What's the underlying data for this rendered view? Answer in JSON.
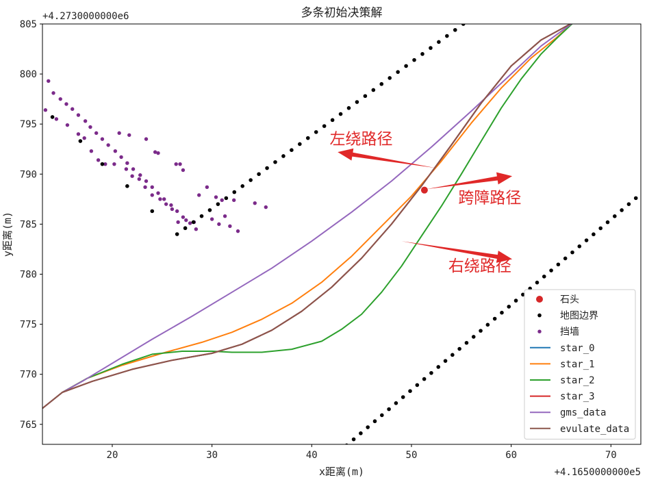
{
  "chart_data": {
    "type": "line",
    "title": "多条初始决策解",
    "xlabel": "x距离(m)",
    "ylabel": "y距离(m)",
    "x_offset_label": "+4.1650000000e5",
    "y_offset_label": "+4.2730000000e6",
    "xlim": [
      13,
      73
    ],
    "ylim": [
      763,
      805
    ],
    "x_ticks": [
      20,
      30,
      40,
      50,
      60,
      70
    ],
    "y_ticks": [
      765,
      770,
      775,
      780,
      785,
      790,
      795,
      800,
      805
    ],
    "grid": false,
    "legend_position": "lower right",
    "stone": {
      "name": "石头",
      "color": "#d62728",
      "point": [
        51.3,
        788.4
      ]
    },
    "boundary": {
      "name": "地图边界",
      "color": "#000000",
      "segments": [
        {
          "from": [
            26.5,
            784.0
          ],
          "to": [
            55.2,
            805.0
          ],
          "count": 36
        },
        {
          "from": [
            43.5,
            762.9
          ],
          "to": [
            72.5,
            787.6
          ],
          "count": 42
        }
      ],
      "extra_points": [
        [
          14.0,
          795.7
        ],
        [
          16.8,
          793.3
        ],
        [
          19.0,
          791.0
        ],
        [
          21.5,
          788.8
        ],
        [
          24.0,
          786.3
        ]
      ]
    },
    "wall": {
      "name": "挡墙",
      "color": "#7b2b8a",
      "points": [
        [
          13.6,
          799.3
        ],
        [
          14.1,
          798.1
        ],
        [
          14.8,
          797.5
        ],
        [
          15.4,
          797.0
        ],
        [
          16.0,
          796.5
        ],
        [
          16.6,
          795.9
        ],
        [
          17.3,
          795.3
        ],
        [
          17.8,
          794.7
        ],
        [
          18.4,
          794.1
        ],
        [
          19.0,
          793.5
        ],
        [
          19.6,
          792.9
        ],
        [
          20.3,
          792.3
        ],
        [
          20.9,
          791.7
        ],
        [
          21.5,
          791.1
        ],
        [
          22.1,
          790.5
        ],
        [
          22.8,
          789.9
        ],
        [
          23.4,
          789.3
        ],
        [
          24.0,
          788.7
        ],
        [
          24.6,
          788.1
        ],
        [
          25.2,
          787.5
        ],
        [
          25.9,
          786.9
        ],
        [
          26.5,
          786.3
        ],
        [
          27.1,
          785.7
        ],
        [
          27.8,
          785.1
        ],
        [
          28.4,
          784.5
        ],
        [
          13.3,
          796.4
        ],
        [
          14.4,
          795.5
        ],
        [
          15.5,
          794.9
        ],
        [
          16.6,
          794.0
        ],
        [
          17.2,
          793.6
        ],
        [
          17.9,
          792.3
        ],
        [
          18.6,
          791.4
        ],
        [
          19.3,
          791.0
        ],
        [
          20.2,
          791.0
        ],
        [
          21.4,
          790.5
        ],
        [
          22.0,
          789.8
        ],
        [
          22.7,
          789.5
        ],
        [
          23.3,
          788.7
        ],
        [
          24.0,
          787.9
        ],
        [
          24.8,
          787.5
        ],
        [
          25.4,
          787.0
        ],
        [
          26.0,
          786.5
        ],
        [
          26.6,
          785.2
        ],
        [
          27.4,
          785.4
        ],
        [
          28.2,
          785.2
        ],
        [
          30.0,
          785.5
        ],
        [
          31.3,
          785.8
        ],
        [
          32.6,
          784.3
        ],
        [
          21.7,
          793.9
        ],
        [
          23.4,
          793.5
        ],
        [
          24.6,
          792.1
        ],
        [
          26.4,
          791.0
        ],
        [
          27.1,
          790.4
        ],
        [
          29.5,
          788.7
        ],
        [
          30.4,
          787.7
        ],
        [
          31.0,
          787.4
        ],
        [
          32.2,
          787.4
        ],
        [
          34.3,
          787.1
        ],
        [
          35.4,
          786.7
        ],
        [
          20.7,
          794.1
        ],
        [
          24.3,
          792.2
        ],
        [
          26.8,
          791.0
        ],
        [
          28.7,
          787.9
        ],
        [
          30.7,
          785.0
        ],
        [
          31.8,
          784.8
        ]
      ]
    },
    "series": [
      {
        "name": "star_0",
        "color": "#1f77b4",
        "points": [
          [
            13,
            766.6
          ],
          [
            15,
            768.2
          ],
          [
            18,
            769.3
          ],
          [
            22,
            770.5
          ],
          [
            26,
            771.4
          ],
          [
            30,
            772.1
          ],
          [
            33,
            773.0
          ],
          [
            36,
            774.4
          ],
          [
            39,
            776.3
          ],
          [
            42,
            778.7
          ],
          [
            45,
            781.6
          ],
          [
            48,
            785.0
          ],
          [
            51,
            788.8
          ],
          [
            54,
            792.9
          ],
          [
            57,
            797.1
          ],
          [
            60,
            800.8
          ],
          [
            63,
            803.4
          ],
          [
            66.3,
            805.2
          ]
        ]
      },
      {
        "name": "star_1",
        "color": "#ff7f0e",
        "points": [
          [
            13,
            766.6
          ],
          [
            15,
            768.2
          ],
          [
            17.5,
            769.6
          ],
          [
            21,
            770.9
          ],
          [
            25,
            772.1
          ],
          [
            29,
            773.2
          ],
          [
            32,
            774.2
          ],
          [
            35,
            775.5
          ],
          [
            38,
            777.1
          ],
          [
            41,
            779.2
          ],
          [
            44,
            781.8
          ],
          [
            47,
            784.8
          ],
          [
            50,
            787.8
          ],
          [
            53,
            791.3
          ],
          [
            56,
            795.1
          ],
          [
            59,
            798.6
          ],
          [
            62,
            801.6
          ],
          [
            64.5,
            803.6
          ],
          [
            66.3,
            805.2
          ]
        ]
      },
      {
        "name": "star_2",
        "color": "#2ca02c",
        "points": [
          [
            13,
            766.6
          ],
          [
            15,
            768.2
          ],
          [
            17.5,
            769.6
          ],
          [
            21,
            771.0
          ],
          [
            24,
            772.0
          ],
          [
            27,
            772.3
          ],
          [
            30,
            772.3
          ],
          [
            32,
            772.2
          ],
          [
            35,
            772.2
          ],
          [
            38,
            772.5
          ],
          [
            41,
            773.3
          ],
          [
            43,
            774.5
          ],
          [
            45,
            776.0
          ],
          [
            47,
            778.2
          ],
          [
            49,
            780.8
          ],
          [
            51,
            783.8
          ],
          [
            53,
            786.8
          ],
          [
            55,
            790.0
          ],
          [
            57,
            793.3
          ],
          [
            59,
            796.6
          ],
          [
            61,
            799.5
          ],
          [
            63,
            802.0
          ],
          [
            64.5,
            803.5
          ],
          [
            66.3,
            805.2
          ]
        ]
      },
      {
        "name": "star_3",
        "color": "#d62728",
        "points": [
          [
            13,
            766.6
          ],
          [
            15,
            768.2
          ],
          [
            18,
            769.3
          ],
          [
            22,
            770.5
          ],
          [
            26,
            771.4
          ],
          [
            30,
            772.1
          ],
          [
            33,
            773.0
          ],
          [
            36,
            774.4
          ],
          [
            39,
            776.3
          ],
          [
            42,
            778.7
          ],
          [
            45,
            781.6
          ],
          [
            48,
            785.0
          ],
          [
            51,
            788.8
          ],
          [
            54,
            792.9
          ],
          [
            57,
            797.1
          ],
          [
            60,
            800.8
          ],
          [
            63,
            803.4
          ],
          [
            66.3,
            805.2
          ]
        ]
      },
      {
        "name": "gms_data",
        "color": "#9467bd",
        "points": [
          [
            13,
            766.6
          ],
          [
            15,
            768.2
          ],
          [
            17,
            769.3
          ],
          [
            20,
            771.1
          ],
          [
            24,
            773.5
          ],
          [
            28,
            775.8
          ],
          [
            32,
            778.2
          ],
          [
            36,
            780.6
          ],
          [
            40,
            783.3
          ],
          [
            44,
            786.2
          ],
          [
            48,
            789.3
          ],
          [
            52,
            792.7
          ],
          [
            56,
            796.3
          ],
          [
            60,
            800.0
          ],
          [
            63,
            802.8
          ],
          [
            66.3,
            805.2
          ]
        ]
      },
      {
        "name": "evulate_data",
        "color": "#8c564b",
        "points": [
          [
            13,
            766.6
          ],
          [
            15,
            768.2
          ],
          [
            18,
            769.3
          ],
          [
            22,
            770.5
          ],
          [
            26,
            771.4
          ],
          [
            30,
            772.1
          ],
          [
            33,
            773.0
          ],
          [
            36,
            774.4
          ],
          [
            39,
            776.3
          ],
          [
            42,
            778.7
          ],
          [
            45,
            781.6
          ],
          [
            48,
            785.0
          ],
          [
            51,
            788.8
          ],
          [
            54,
            792.9
          ],
          [
            57,
            797.1
          ],
          [
            60,
            800.8
          ],
          [
            63,
            803.4
          ],
          [
            66.3,
            805.2
          ]
        ]
      }
    ],
    "annotations": [
      {
        "text": "左绕路径",
        "text_at": [
          41.8,
          793.0
        ],
        "arrow_from": [
          52.5,
          790.6
        ],
        "arrow_to": [
          42.6,
          792.2
        ]
      },
      {
        "text": "跨障路径",
        "text_at": [
          54.7,
          787.1
        ],
        "arrow_from": [
          51.5,
          788.5
        ],
        "arrow_to": [
          60.1,
          789.8
        ]
      },
      {
        "text": "右绕路径",
        "text_at": [
          53.7,
          780.3
        ],
        "arrow_from": [
          49.0,
          783.3
        ],
        "arrow_to": [
          60.1,
          781.5
        ]
      }
    ]
  }
}
